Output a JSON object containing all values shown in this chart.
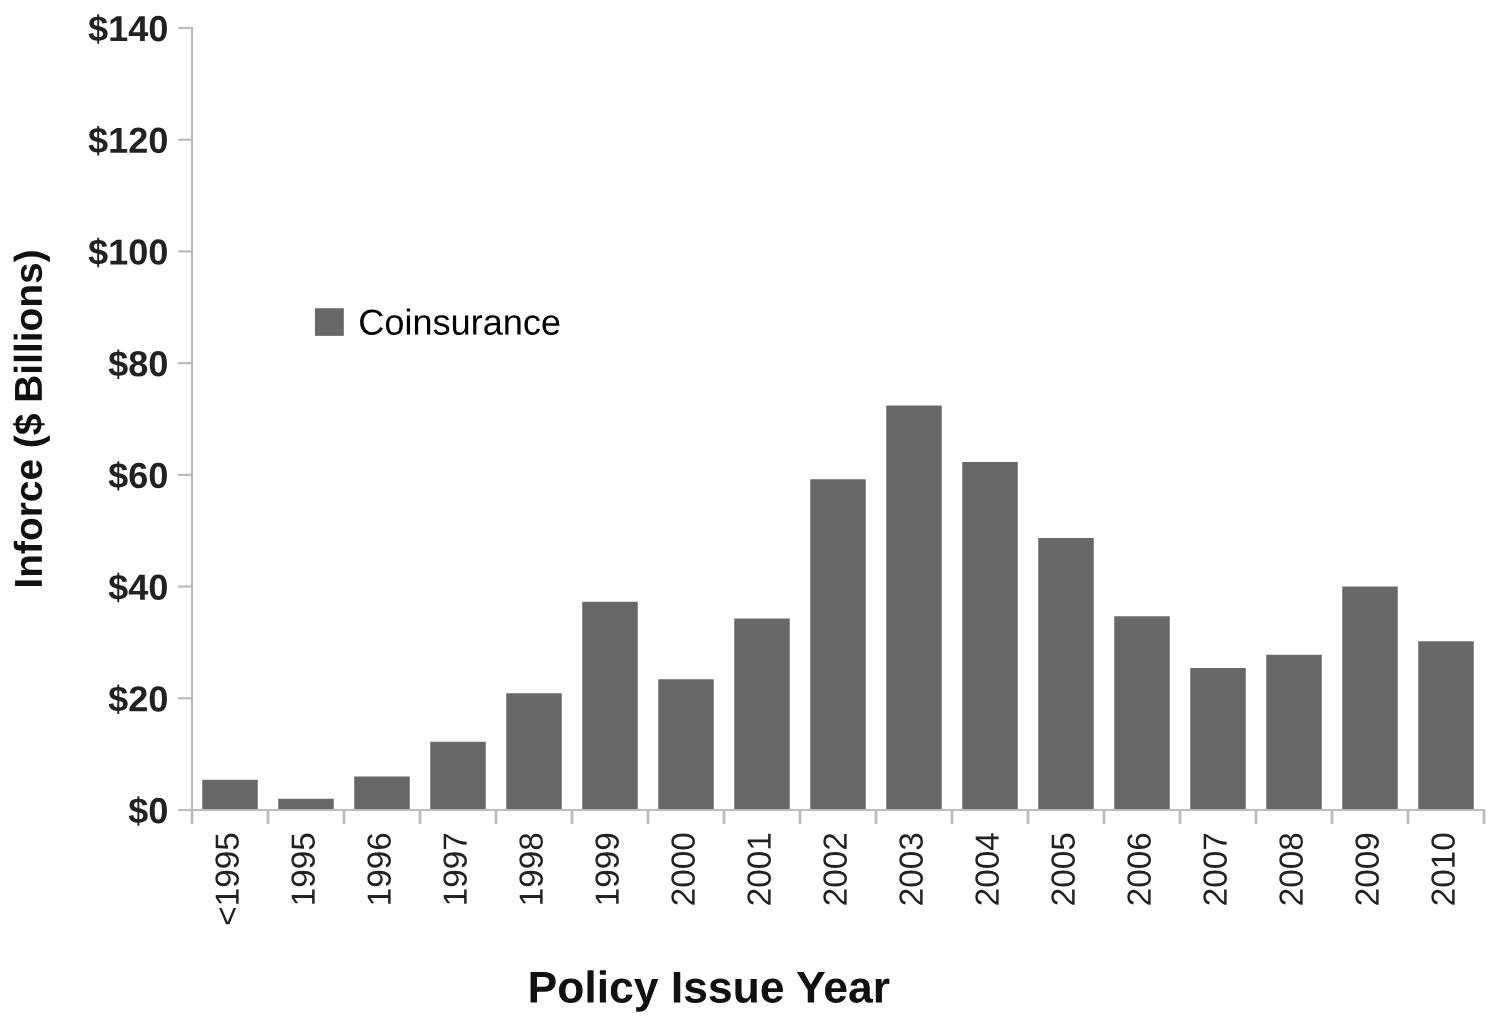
{
  "chart_data": {
    "type": "bar",
    "categories": [
      "<1995",
      "1995",
      "1996",
      "1997",
      "1998",
      "1999",
      "2000",
      "2001",
      "2002",
      "2003",
      "2004",
      "2005",
      "2006",
      "2007",
      "2008",
      "2009",
      "2010"
    ],
    "series": [
      {
        "name": "Coinsurance",
        "color": "#68686a",
        "values": [
          5.4,
          2.0,
          6.0,
          12.2,
          20.9,
          37.3,
          23.4,
          34.3,
          59.2,
          72.4,
          62.3,
          48.7,
          34.7,
          25.4,
          27.8,
          40.0,
          30.2
        ]
      }
    ],
    "xlabel": "Policy Issue Year",
    "ylabel": "Inforce ($ Billions)",
    "ylim": [
      0,
      140
    ],
    "yticks": [
      {
        "value": 0,
        "label": "$0"
      },
      {
        "value": 20,
        "label": "$20"
      },
      {
        "value": 40,
        "label": "$40"
      },
      {
        "value": 60,
        "label": "$60"
      },
      {
        "value": 80,
        "label": "$80"
      },
      {
        "value": 100,
        "label": "$100"
      },
      {
        "value": 120,
        "label": "$120"
      },
      {
        "value": 140,
        "label": "$140"
      }
    ],
    "grid": false,
    "legend": "left"
  }
}
